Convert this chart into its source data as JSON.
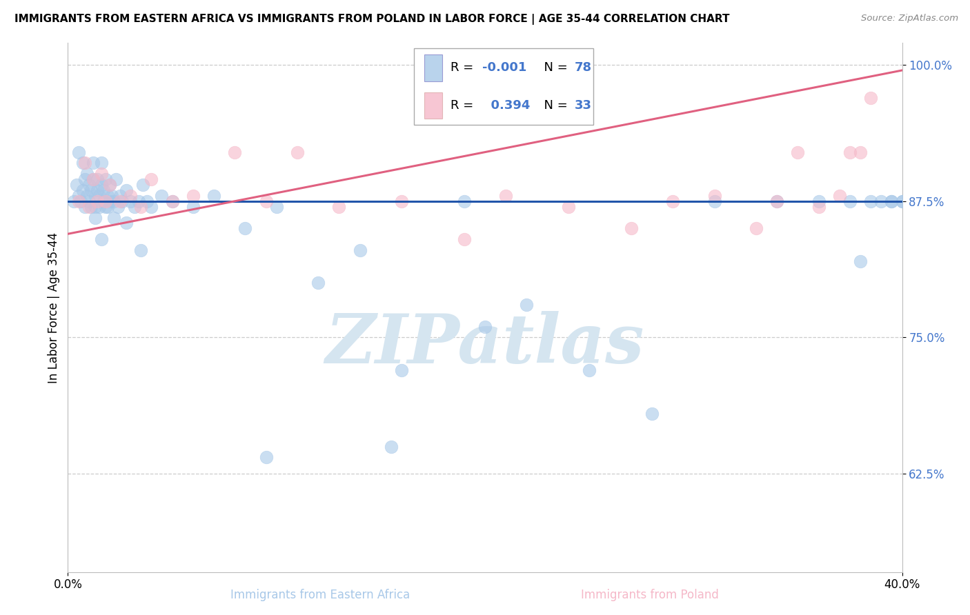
{
  "title": "IMMIGRANTS FROM EASTERN AFRICA VS IMMIGRANTS FROM POLAND IN LABOR FORCE | AGE 35-44 CORRELATION CHART",
  "source": "Source: ZipAtlas.com",
  "ylabel": "In Labor Force | Age 35-44",
  "ytick_vals": [
    0.625,
    0.75,
    0.875,
    1.0
  ],
  "ytick_labels": [
    "62.5%",
    "75.0%",
    "87.5%",
    "100.0%"
  ],
  "xlim": [
    0.0,
    0.4
  ],
  "ylim": [
    0.535,
    1.02
  ],
  "legend_r1": "-0.001",
  "legend_n1": "78",
  "legend_r2": "0.394",
  "legend_n2": "33",
  "color_blue": "#a8c8e8",
  "color_pink": "#f5b8c8",
  "trend_blue": "#2255aa",
  "trend_pink": "#e06080",
  "tick_color": "#4477cc",
  "background_color": "#ffffff",
  "watermark": "ZIPatlas",
  "watermark_color": "#d5e5f0",
  "grid_color": "#cccccc",
  "source_color": "#888888",
  "blue_x": [
    0.003,
    0.004,
    0.005,
    0.005,
    0.006,
    0.007,
    0.007,
    0.008,
    0.008,
    0.009,
    0.009,
    0.01,
    0.01,
    0.011,
    0.011,
    0.012,
    0.012,
    0.013,
    0.013,
    0.014,
    0.014,
    0.015,
    0.015,
    0.016,
    0.016,
    0.017,
    0.017,
    0.018,
    0.018,
    0.019,
    0.019,
    0.02,
    0.02,
    0.021,
    0.022,
    0.023,
    0.024,
    0.025,
    0.026,
    0.028,
    0.03,
    0.032,
    0.034,
    0.036,
    0.038,
    0.04,
    0.045,
    0.05,
    0.06,
    0.07,
    0.085,
    0.1,
    0.12,
    0.14,
    0.16,
    0.19,
    0.22,
    0.25,
    0.28,
    0.31,
    0.34,
    0.36,
    0.375,
    0.385,
    0.395,
    0.4,
    0.4,
    0.395,
    0.39,
    0.38,
    0.155,
    0.2,
    0.095,
    0.035,
    0.028,
    0.022,
    0.016,
    0.013
  ],
  "blue_y": [
    0.875,
    0.89,
    0.88,
    0.92,
    0.875,
    0.885,
    0.91,
    0.87,
    0.895,
    0.88,
    0.9,
    0.875,
    0.89,
    0.885,
    0.87,
    0.895,
    0.91,
    0.88,
    0.87,
    0.885,
    0.895,
    0.88,
    0.87,
    0.89,
    0.91,
    0.875,
    0.885,
    0.87,
    0.895,
    0.88,
    0.87,
    0.89,
    0.875,
    0.88,
    0.875,
    0.895,
    0.87,
    0.88,
    0.875,
    0.885,
    0.875,
    0.87,
    0.875,
    0.89,
    0.875,
    0.87,
    0.88,
    0.875,
    0.87,
    0.88,
    0.85,
    0.87,
    0.8,
    0.83,
    0.72,
    0.875,
    0.78,
    0.72,
    0.68,
    0.875,
    0.875,
    0.875,
    0.875,
    0.875,
    0.875,
    0.875,
    0.875,
    0.875,
    0.875,
    0.82,
    0.65,
    0.76,
    0.64,
    0.83,
    0.855,
    0.86,
    0.84,
    0.86
  ],
  "pink_x": [
    0.005,
    0.008,
    0.01,
    0.012,
    0.014,
    0.016,
    0.018,
    0.02,
    0.025,
    0.03,
    0.035,
    0.04,
    0.05,
    0.06,
    0.08,
    0.095,
    0.11,
    0.13,
    0.16,
    0.19,
    0.21,
    0.24,
    0.27,
    0.29,
    0.31,
    0.33,
    0.34,
    0.35,
    0.36,
    0.37,
    0.375,
    0.38,
    0.385
  ],
  "pink_y": [
    0.875,
    0.91,
    0.87,
    0.895,
    0.875,
    0.9,
    0.875,
    0.89,
    0.875,
    0.88,
    0.87,
    0.895,
    0.875,
    0.88,
    0.92,
    0.875,
    0.92,
    0.87,
    0.875,
    0.84,
    0.88,
    0.87,
    0.85,
    0.875,
    0.88,
    0.85,
    0.875,
    0.92,
    0.87,
    0.88,
    0.92,
    0.92,
    0.97
  ],
  "blue_trend_y0": 0.875,
  "blue_trend_y1": 0.875,
  "pink_trend_x0": 0.0,
  "pink_trend_y0": 0.845,
  "pink_trend_x1": 0.4,
  "pink_trend_y1": 0.995
}
